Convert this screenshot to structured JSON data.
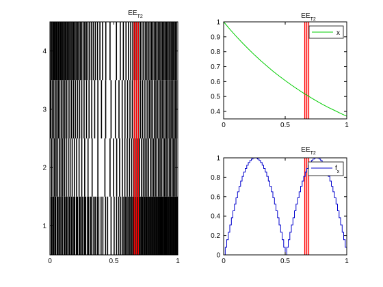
{
  "chart_data": [
    {
      "type": "barcode",
      "title": "EE",
      "title_sub": "T2",
      "xlabel": "",
      "ylabel": "",
      "xlim": [
        0,
        1
      ],
      "ylim": [
        0.5,
        4.5
      ],
      "xticks": [
        "0",
        "0.5",
        "1"
      ],
      "yticks": [
        "1",
        "2",
        "3",
        "4"
      ],
      "rows": [
        {
          "row": 1,
          "line_x": [
            0.01,
            0.016,
            0.026,
            0.031,
            0.041,
            0.046,
            0.058,
            0.064,
            0.075,
            0.08,
            0.092,
            0.097,
            0.11,
            0.117,
            0.128,
            0.134,
            0.148,
            0.155,
            0.167,
            0.175,
            0.187,
            0.194,
            0.207,
            0.215,
            0.228,
            0.236,
            0.249,
            0.258,
            0.271,
            0.28,
            0.294,
            0.303,
            0.318,
            0.328,
            0.343,
            0.354,
            0.37,
            0.382,
            0.4,
            0.414,
            0.435,
            0.451,
            0.478,
            0.502,
            0.521,
            0.538,
            0.553,
            0.566,
            0.578,
            0.589,
            0.6,
            0.61,
            0.621,
            0.631,
            0.641,
            0.651,
            0.66,
            0.67,
            0.679,
            0.688,
            0.697,
            0.706,
            0.715,
            0.724,
            0.733,
            0.741,
            0.75,
            0.758,
            0.767,
            0.775,
            0.783,
            0.791,
            0.799,
            0.807,
            0.815,
            0.823,
            0.831,
            0.839,
            0.847,
            0.855,
            0.862,
            0.87,
            0.878,
            0.885,
            0.893,
            0.9,
            0.908,
            0.915,
            0.923,
            0.93,
            0.938,
            0.945,
            0.952,
            0.96,
            0.967,
            0.974,
            0.982,
            0.989,
            0.996
          ]
        },
        {
          "row": 2,
          "line_x": [
            0.012,
            0.024,
            0.036,
            0.048,
            0.061,
            0.074,
            0.087,
            0.1,
            0.114,
            0.128,
            0.143,
            0.158,
            0.174,
            0.191,
            0.209,
            0.228,
            0.249,
            0.272,
            0.298,
            0.33,
            0.375,
            0.43,
            0.47,
            0.498,
            0.522,
            0.545,
            0.566,
            0.586,
            0.604,
            0.622,
            0.639,
            0.655,
            0.671,
            0.686,
            0.701,
            0.716,
            0.73,
            0.744,
            0.758,
            0.771,
            0.785,
            0.798,
            0.811,
            0.824,
            0.836,
            0.849,
            0.861,
            0.873,
            0.885,
            0.897,
            0.909,
            0.921,
            0.933,
            0.944,
            0.956,
            0.967,
            0.978,
            0.989
          ]
        },
        {
          "row": 3,
          "line_x": [
            0.006,
            0.018,
            0.03,
            0.042,
            0.054,
            0.066,
            0.078,
            0.09,
            0.103,
            0.116,
            0.129,
            0.142,
            0.156,
            0.17,
            0.185,
            0.2,
            0.216,
            0.232,
            0.249,
            0.267,
            0.286,
            0.306,
            0.327,
            0.35,
            0.375,
            0.403,
            0.436,
            0.478,
            0.512,
            0.54,
            0.565,
            0.587,
            0.607,
            0.626,
            0.644,
            0.661,
            0.677,
            0.693,
            0.708,
            0.723,
            0.737,
            0.751,
            0.765,
            0.778,
            0.791,
            0.804,
            0.817,
            0.829,
            0.842,
            0.854,
            0.866,
            0.878,
            0.89,
            0.901,
            0.913,
            0.924,
            0.936,
            0.947,
            0.958,
            0.969,
            0.98,
            0.991
          ]
        },
        {
          "row": 4,
          "line_x": [
            0.008,
            0.016,
            0.025,
            0.033,
            0.041,
            0.05,
            0.058,
            0.067,
            0.075,
            0.084,
            0.093,
            0.101,
            0.11,
            0.119,
            0.128,
            0.137,
            0.147,
            0.156,
            0.166,
            0.175,
            0.185,
            0.195,
            0.205,
            0.216,
            0.226,
            0.237,
            0.248,
            0.26,
            0.272,
            0.284,
            0.297,
            0.31,
            0.324,
            0.339,
            0.355,
            0.372,
            0.391,
            0.412,
            0.437,
            0.47,
            0.52,
            0.55,
            0.574,
            0.595,
            0.614,
            0.632,
            0.648,
            0.664,
            0.679,
            0.693,
            0.707,
            0.72,
            0.733,
            0.746,
            0.758,
            0.77,
            0.782,
            0.794,
            0.805,
            0.816,
            0.827,
            0.838,
            0.849,
            0.86,
            0.87,
            0.881,
            0.891,
            0.901,
            0.911,
            0.921,
            0.931,
            0.941,
            0.951,
            0.961,
            0.97,
            0.98,
            0.99
          ]
        }
      ],
      "highlight_x": [
        0.655,
        0.695
      ],
      "highlight_color": "#ff0000"
    },
    {
      "type": "line",
      "title": "EE",
      "title_sub": "T2",
      "xlabel": "",
      "ylabel": "",
      "xlim": [
        0,
        1
      ],
      "ylim": [
        0.35,
        1.0
      ],
      "xticks": [
        "0",
        "0.5",
        "1"
      ],
      "yticks": [
        "0.4",
        "0.5",
        "0.6",
        "0.7",
        "0.8",
        "0.9",
        "1"
      ],
      "series": [
        {
          "name": "x",
          "color": "#00cc00",
          "x": [
            0,
            0.05,
            0.1,
            0.15,
            0.2,
            0.25,
            0.3,
            0.35,
            0.4,
            0.45,
            0.5,
            0.55,
            0.6,
            0.65,
            0.7,
            0.75,
            0.8,
            0.85,
            0.9,
            0.95,
            1.0
          ],
          "y": [
            1.0,
            0.951,
            0.905,
            0.861,
            0.819,
            0.779,
            0.741,
            0.705,
            0.67,
            0.638,
            0.607,
            0.577,
            0.549,
            0.522,
            0.497,
            0.472,
            0.449,
            0.427,
            0.407,
            0.387,
            0.368
          ]
        }
      ],
      "legend": "top-right",
      "highlight_x": [
        0.655,
        0.695
      ],
      "highlight_color": "#ff0000"
    },
    {
      "type": "line",
      "title": "EE",
      "title_sub": "T2",
      "xlabel": "",
      "ylabel": "",
      "xlim": [
        0,
        1
      ],
      "ylim": [
        0,
        1
      ],
      "xticks": [
        "0",
        "0.5",
        "1"
      ],
      "yticks": [
        "0",
        "0.2",
        "0.4",
        "0.6",
        "0.8",
        "1"
      ],
      "series": [
        {
          "name": "f",
          "name_sub": "x",
          "color": "#0000cc",
          "formula": "abs(sin(2*pi*x))",
          "step": true,
          "samples": 80
        }
      ],
      "legend": "top-right",
      "highlight_x": [
        0.655,
        0.695
      ],
      "highlight_color": "#ff0000"
    }
  ]
}
